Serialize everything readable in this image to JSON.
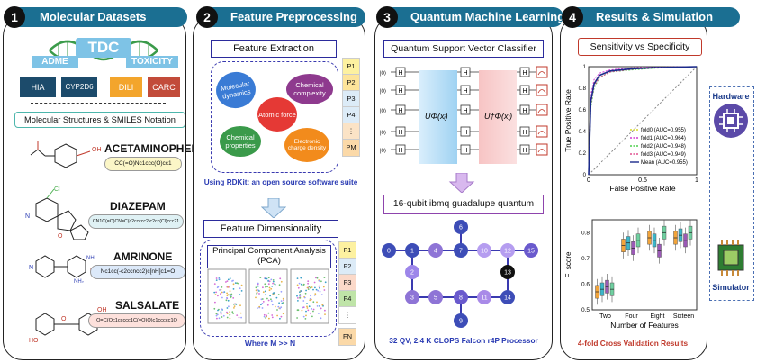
{
  "panel1": {
    "number": "1",
    "title": "Molecular Datasets",
    "tdc": "TDC",
    "adme": "ADME",
    "toxicity": "TOXICITY",
    "datasets": [
      "HIA",
      "CYP2D6",
      "DILI",
      "CARC"
    ],
    "notation": "Molecular Structures & SMILES Notation",
    "drugs": [
      {
        "name": "ACETAMINOPHEN",
        "smiles": "CC(=O)Nc1ccc(O)cc1",
        "color": "#fbf6c7"
      },
      {
        "name": "DIAZEPAM",
        "smiles": "CN1C(=O)CN=C(c2ccccc2)c2cc(Cl)ccc21",
        "color": "#dff1f4"
      },
      {
        "name": "AMRINONE",
        "smiles": "Nc1cc(-c2ccncc2)c[nH]c1=O",
        "color": "#dce9f9"
      },
      {
        "name": "SALSALATE",
        "smiles": "O=C(Oc1ccccc1C(=O)O)c1ccccc1O",
        "color": "#fde1dc"
      }
    ]
  },
  "panel2": {
    "number": "2",
    "title": "Feature Preprocessing",
    "extraction": "Feature Extraction",
    "ellipses": [
      "Molecular dynamics",
      "Chemical complexity",
      "Atomic force",
      "Chemical properties",
      "Electronic charge density"
    ],
    "p_labels": [
      "P1",
      "P2",
      "P3",
      "P4",
      "⋮",
      "PM"
    ],
    "rdkit": "Using RDKit: an open source software suite",
    "dimensionality": "Feature Dimensionality",
    "pca": "Principal Component Analysis (PCA)",
    "f_labels": [
      "F1",
      "F2",
      "F3",
      "F4",
      "⋮",
      "FN"
    ],
    "where": "Where M >> N"
  },
  "panel3": {
    "number": "3",
    "title": "Quantum Machine Learning",
    "qsvc": "Quantum Support Vector Classifier",
    "u1": "UΦ(xᵢ)",
    "u2": "U†Φ(xⱼ)",
    "h": "H",
    "ket": "|0⟩",
    "device": "16-qubit ibmq guadalupe quantum",
    "qubits": [
      "0",
      "1",
      "2",
      "3",
      "4",
      "5",
      "6",
      "7",
      "8",
      "9",
      "10",
      "11",
      "12",
      "13",
      "14",
      "15"
    ],
    "specs": "32 QV, 2.4 K CLOPS  Falcon r4P Processor"
  },
  "panel4": {
    "number": "4",
    "title": "Results & Simulation",
    "roc_title": "Sensitivity vs Specificity",
    "hardware": "Hardware",
    "simulator": "Simulator",
    "footer": "4-fold Cross Validation Results"
  },
  "chart_data": [
    {
      "type": "line",
      "title": "Sensitivity vs Specificity",
      "xlabel": "False Positive Rate",
      "ylabel": "True Positive Rate",
      "xlim": [
        0,
        1
      ],
      "ylim": [
        0,
        1
      ],
      "xticks": [
        "0",
        "0.5",
        "1"
      ],
      "yticks": [
        "0",
        "0.2",
        "0.4",
        "0.6",
        "0.8",
        "1"
      ],
      "legend_position": "bottom-right",
      "series": [
        {
          "name": "fold0 (AUC=0.955)",
          "color": "#d9d92a",
          "dashed": true,
          "x": [
            0,
            0.02,
            0.05,
            0.1,
            0.2,
            0.4,
            0.6,
            1
          ],
          "y": [
            0,
            0.7,
            0.85,
            0.92,
            0.96,
            0.98,
            0.99,
            1
          ]
        },
        {
          "name": "fold1 (AUC=0.964)",
          "color": "#d23cd2",
          "dashed": true,
          "x": [
            0,
            0.02,
            0.05,
            0.1,
            0.2,
            0.4,
            0.6,
            1
          ],
          "y": [
            0,
            0.74,
            0.88,
            0.94,
            0.97,
            0.99,
            0.995,
            1
          ]
        },
        {
          "name": "fold2 (AUC=0.948)",
          "color": "#4ccf4c",
          "dashed": true,
          "x": [
            0,
            0.02,
            0.05,
            0.1,
            0.2,
            0.4,
            0.6,
            1
          ],
          "y": [
            0,
            0.62,
            0.8,
            0.9,
            0.95,
            0.97,
            0.985,
            1
          ]
        },
        {
          "name": "fold3 (AUC=0.949)",
          "color": "#e0508f",
          "dashed": true,
          "x": [
            0,
            0.02,
            0.05,
            0.1,
            0.2,
            0.4,
            0.6,
            1
          ],
          "y": [
            0,
            0.65,
            0.82,
            0.9,
            0.95,
            0.975,
            0.99,
            1
          ]
        },
        {
          "name": "Mean (AUC=0.955)",
          "color": "#1a2a8c",
          "dashed": false,
          "x": [
            0,
            0.02,
            0.05,
            0.1,
            0.2,
            0.4,
            0.6,
            1
          ],
          "y": [
            0,
            0.68,
            0.84,
            0.92,
            0.96,
            0.98,
            0.99,
            1
          ]
        }
      ]
    },
    {
      "type": "box",
      "xlabel": "Number of Features",
      "ylabel": "F_score",
      "categories": [
        "Two",
        "Four",
        "Eight",
        "Sixteen"
      ],
      "ylim": [
        0.5,
        0.85
      ],
      "yticks": [
        "0.5",
        "0.6",
        "0.7",
        "0.8"
      ],
      "series": [
        {
          "color": "#f2a43a",
          "medians": [
            0.57,
            0.75,
            0.78,
            0.78
          ]
        },
        {
          "color": "#3bb6c9",
          "medians": [
            0.58,
            0.76,
            0.77,
            0.79
          ]
        },
        {
          "color": "#9b59b6",
          "medians": [
            0.59,
            0.74,
            0.73,
            0.77
          ]
        },
        {
          "color": "#6fd0a0",
          "medians": [
            0.58,
            0.77,
            0.8,
            0.8
          ]
        }
      ]
    }
  ]
}
